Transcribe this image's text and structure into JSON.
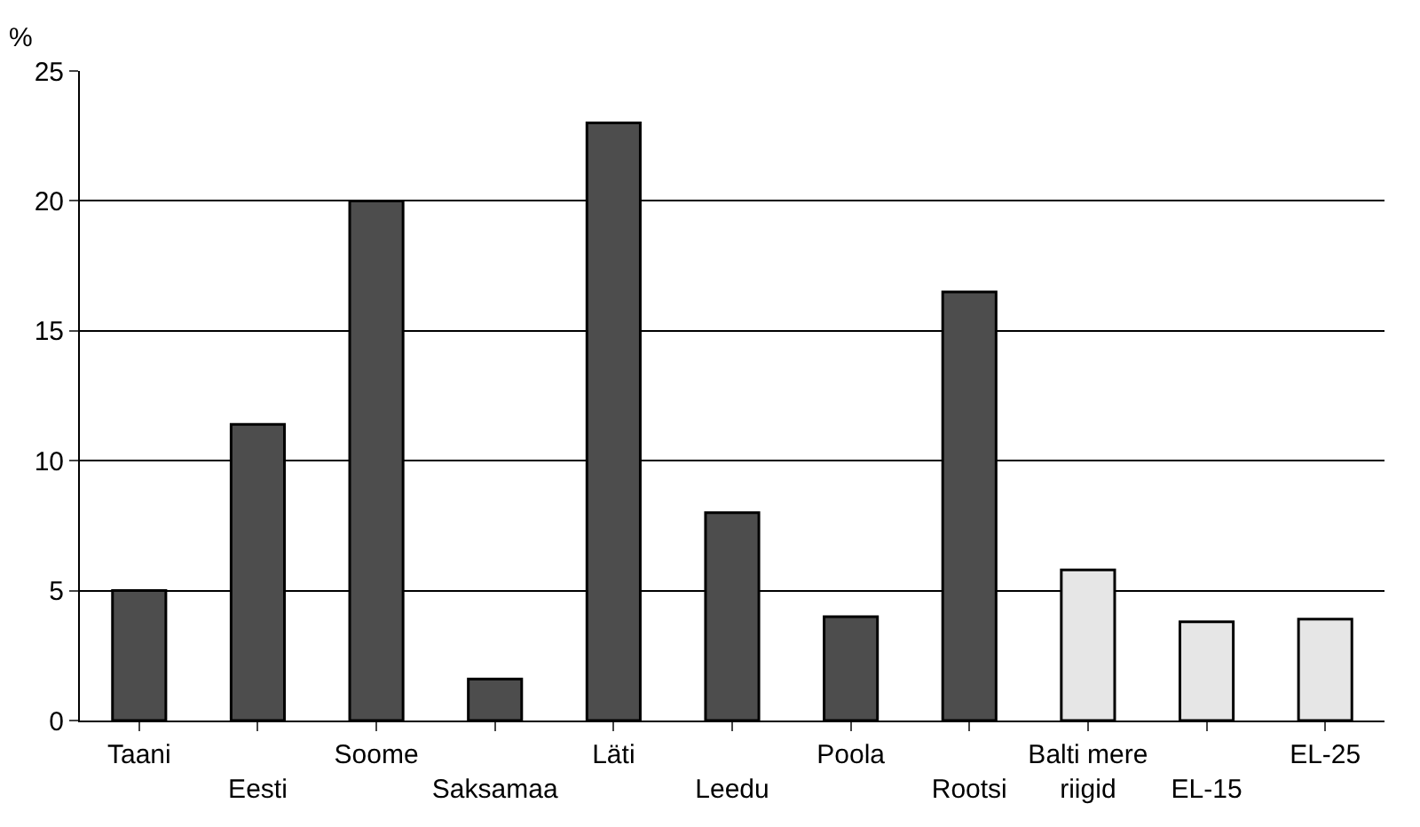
{
  "chart_data": {
    "type": "bar",
    "ylabel": "%",
    "categories": [
      "Taani",
      "Eesti",
      "Soome",
      "Saksamaa",
      "Läti",
      "Leedu",
      "Poola",
      "Rootsi",
      "Balti mere riigid",
      "EL-15",
      "EL-25"
    ],
    "values": [
      5.0,
      11.4,
      20.0,
      1.6,
      23.0,
      8.0,
      4.0,
      16.5,
      5.8,
      3.8,
      3.9
    ],
    "colors": [
      "#4d4d4d",
      "#4d4d4d",
      "#4d4d4d",
      "#4d4d4d",
      "#4d4d4d",
      "#4d4d4d",
      "#4d4d4d",
      "#4d4d4d",
      "#e6e6e6",
      "#e6e6e6",
      "#e6e6e6"
    ],
    "ylim": [
      0,
      25
    ],
    "yticks": [
      0,
      5,
      10,
      15,
      20,
      25
    ],
    "grid": "y"
  }
}
